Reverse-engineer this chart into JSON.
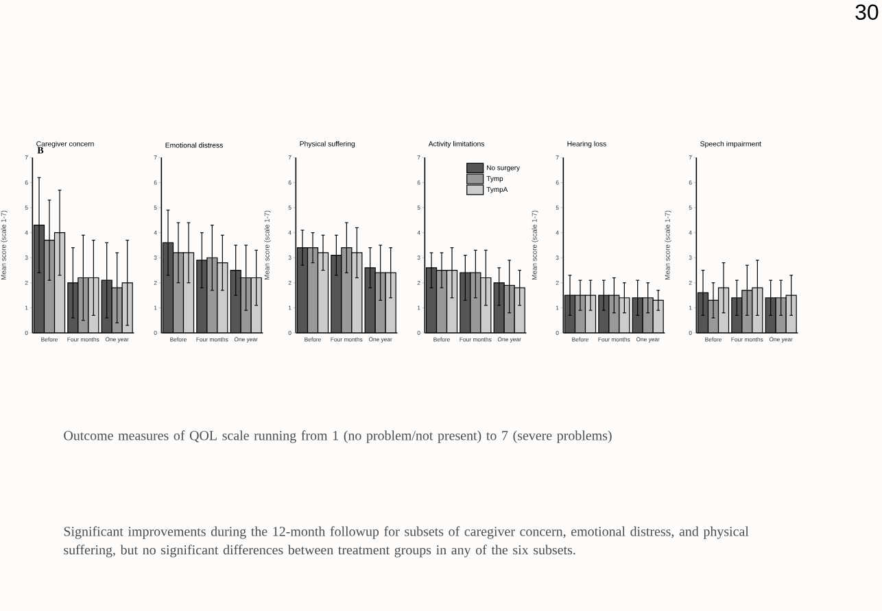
{
  "chart_data": [
    {
      "type": "bar",
      "title": "Caregiver concern",
      "ylabel": "Mean score (scale 1-7)",
      "annotations": [
        "B"
      ],
      "categories": [
        "Before",
        "Four months",
        "One year"
      ],
      "ylim": [
        0,
        7
      ],
      "yticks": [
        0,
        1,
        2,
        3,
        4,
        5,
        6,
        7
      ],
      "series": [
        {
          "color": "#555555",
          "values": [
            4.3,
            2.0,
            2.1
          ],
          "errors": [
            [
              2.4,
              6.2
            ],
            [
              0.6,
              3.4
            ],
            [
              0.6,
              3.6
            ]
          ]
        },
        {
          "color": "#999999",
          "values": [
            3.7,
            2.2,
            1.8
          ],
          "errors": [
            [
              2.1,
              5.3
            ],
            [
              0.5,
              3.9
            ],
            [
              0.4,
              3.2
            ]
          ]
        },
        {
          "color": "#cccccc",
          "values": [
            4.0,
            2.2,
            2.0
          ],
          "errors": [
            [
              2.3,
              5.7
            ],
            [
              0.7,
              3.7
            ],
            [
              0.3,
              3.7
            ]
          ]
        }
      ]
    },
    {
      "type": "bar",
      "title": "Emotional distress",
      "categories": [
        "Before",
        "Four months",
        "One year"
      ],
      "ylim": [
        0,
        7
      ],
      "yticks": [
        0,
        1,
        2,
        3,
        4,
        5,
        6,
        7
      ],
      "series": [
        {
          "color": "#555555",
          "values": [
            3.6,
            2.9,
            2.5
          ],
          "errors": [
            [
              2.3,
              4.9
            ],
            [
              1.8,
              4.0
            ],
            [
              1.5,
              3.5
            ]
          ]
        },
        {
          "color": "#999999",
          "values": [
            3.2,
            3.0,
            2.2
          ],
          "errors": [
            [
              2.0,
              4.4
            ],
            [
              1.7,
              4.3
            ],
            [
              0.9,
              3.5
            ]
          ]
        },
        {
          "color": "#cccccc",
          "values": [
            3.2,
            2.8,
            2.2
          ],
          "errors": [
            [
              2.0,
              4.4
            ],
            [
              1.7,
              3.9
            ],
            [
              1.1,
              3.3
            ]
          ]
        }
      ]
    },
    {
      "type": "bar",
      "title": "Physical suffering",
      "ylabel": "Mean score (scale 1-7)",
      "categories": [
        "Before",
        "Four months",
        "One year"
      ],
      "ylim": [
        0,
        7
      ],
      "yticks": [
        0,
        1,
        2,
        3,
        4,
        5,
        6,
        7
      ],
      "series": [
        {
          "color": "#555555",
          "values": [
            3.4,
            3.1,
            2.6
          ],
          "errors": [
            [
              2.7,
              4.1
            ],
            [
              2.3,
              3.9
            ],
            [
              1.8,
              3.4
            ]
          ]
        },
        {
          "color": "#999999",
          "values": [
            3.4,
            3.4,
            2.4
          ],
          "errors": [
            [
              2.8,
              4.0
            ],
            [
              2.4,
              4.4
            ],
            [
              1.3,
              3.5
            ]
          ]
        },
        {
          "color": "#cccccc",
          "values": [
            3.2,
            3.2,
            2.4
          ],
          "errors": [
            [
              2.5,
              3.9
            ],
            [
              2.2,
              4.2
            ],
            [
              1.4,
              3.4
            ]
          ]
        }
      ]
    },
    {
      "type": "bar",
      "title": "Activity limitations",
      "legend": "top right",
      "categories": [
        "Before",
        "Four months",
        "One year"
      ],
      "ylim": [
        0,
        7
      ],
      "yticks": [
        0,
        1,
        2,
        3,
        4,
        5,
        6,
        7
      ],
      "series": [
        {
          "name": "No surgery",
          "color": "#555555",
          "values": [
            2.6,
            2.4,
            2.0
          ],
          "errors": [
            [
              1.8,
              3.2
            ],
            [
              1.3,
              3.1
            ],
            [
              1.1,
              2.6
            ]
          ]
        },
        {
          "name": "Tymp",
          "color": "#999999",
          "values": [
            2.5,
            2.4,
            1.9
          ],
          "errors": [
            [
              1.8,
              3.2
            ],
            [
              1.4,
              3.3
            ],
            [
              0.8,
              2.9
            ]
          ]
        },
        {
          "name": "TympA",
          "color": "#cccccc",
          "values": [
            2.5,
            2.2,
            1.8
          ],
          "errors": [
            [
              1.4,
              3.4
            ],
            [
              1.1,
              3.3
            ],
            [
              1.1,
              2.5
            ]
          ]
        }
      ]
    },
    {
      "type": "bar",
      "title": "Hearing loss",
      "ylabel": "Mean score (scale 1-7)",
      "categories": [
        "Before",
        "Four months",
        "One year"
      ],
      "ylim": [
        0,
        7
      ],
      "yticks": [
        0,
        1,
        2,
        3,
        4,
        5,
        6,
        7
      ],
      "series": [
        {
          "color": "#555555",
          "values": [
            1.5,
            1.5,
            1.4
          ],
          "errors": [
            [
              0.7,
              2.3
            ],
            [
              0.9,
              2.1
            ],
            [
              0.7,
              2.1
            ]
          ]
        },
        {
          "color": "#999999",
          "values": [
            1.5,
            1.5,
            1.4
          ],
          "errors": [
            [
              0.9,
              2.1
            ],
            [
              0.8,
              2.2
            ],
            [
              0.8,
              2.0
            ]
          ]
        },
        {
          "color": "#cccccc",
          "values": [
            1.5,
            1.4,
            1.3
          ],
          "errors": [
            [
              0.9,
              2.1
            ],
            [
              0.8,
              2.0
            ],
            [
              0.9,
              1.7
            ]
          ]
        }
      ]
    },
    {
      "type": "bar",
      "title": "Speech impairment",
      "ylabel": "Mean score (scale 1-7)",
      "annotations": [
        "30",
        "Outcome measures of QOL scale running from 1 (no problem/not present) to 7 (severe problems)",
        "Significant improvements during the 12-month followup for subsets of caregiver concern, emotional distress, and physical suffering, but no significant differences between treatment groups in any of the six subsets."
      ],
      "categories": [
        "Before",
        "Four months",
        "One year"
      ],
      "ylim": [
        0,
        7
      ],
      "yticks": [
        0,
        1,
        2,
        3,
        4,
        5,
        6,
        7
      ],
      "series": [
        {
          "color": "#555555",
          "values": [
            1.6,
            1.4,
            1.4
          ],
          "errors": [
            [
              0.7,
              2.5
            ],
            [
              0.7,
              2.1
            ],
            [
              0.7,
              2.1
            ]
          ]
        },
        {
          "color": "#999999",
          "values": [
            1.3,
            1.7,
            1.4
          ],
          "errors": [
            [
              0.6,
              2.0
            ],
            [
              0.7,
              2.7
            ],
            [
              0.7,
              2.1
            ]
          ]
        },
        {
          "color": "#cccccc",
          "values": [
            1.8,
            1.8,
            1.5
          ],
          "errors": [
            [
              0.8,
              2.8
            ],
            [
              0.7,
              2.9
            ],
            [
              0.7,
              2.3
            ]
          ]
        }
      ]
    }
  ]
}
